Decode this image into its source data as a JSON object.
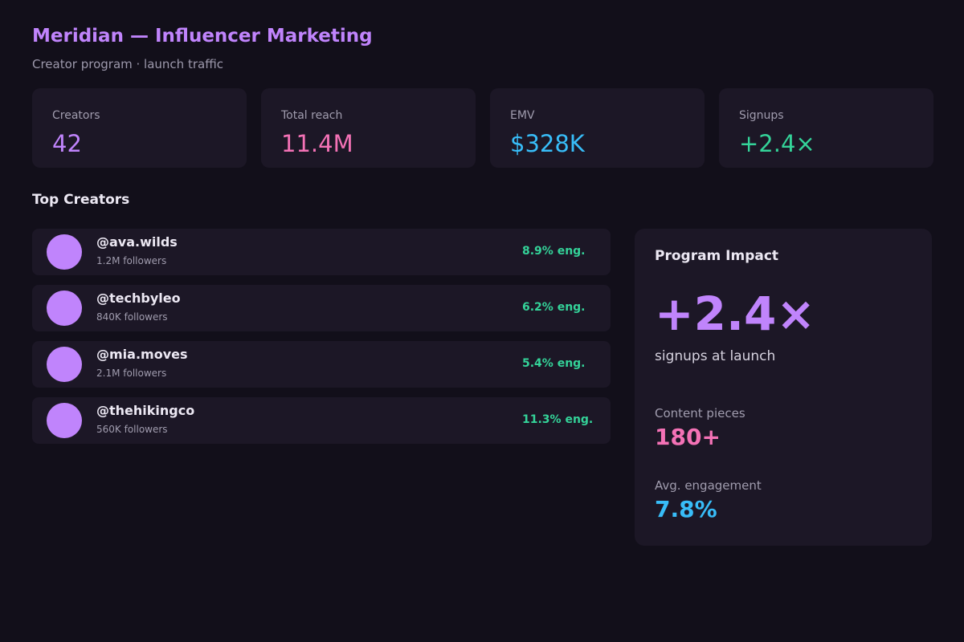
{
  "header": {
    "title": "Meridian — Influencer Marketing",
    "subtitle": "Creator program · launch traffic"
  },
  "stats": [
    {
      "label": "Creators",
      "value": "42",
      "color": "#c084fc"
    },
    {
      "label": "Total reach",
      "value": "11.4M",
      "color": "#f472b6"
    },
    {
      "label": "EMV",
      "value": "$328K",
      "color": "#38bdf8"
    },
    {
      "label": "Signups",
      "value": "+2.4×",
      "color": "#34d399"
    }
  ],
  "top_creators": {
    "title": "Top Creators",
    "rows": [
      {
        "handle": "@ava.wilds",
        "followers": "1.2M followers",
        "engagement": "8.9% eng."
      },
      {
        "handle": "@techbyleo",
        "followers": "840K followers",
        "engagement": "6.2% eng."
      },
      {
        "handle": "@mia.moves",
        "followers": "2.1M followers",
        "engagement": "5.4% eng."
      },
      {
        "handle": "@thehikingco",
        "followers": "560K followers",
        "engagement": "11.3% eng."
      }
    ]
  },
  "impact": {
    "title": "Program Impact",
    "big_value": "+2.4×",
    "caption": "signups at launch",
    "metrics": [
      {
        "label": "Content pieces",
        "value": "180+",
        "color": "#f472b6"
      },
      {
        "label": "Avg. engagement",
        "value": "7.8%",
        "color": "#38bdf8"
      }
    ]
  }
}
